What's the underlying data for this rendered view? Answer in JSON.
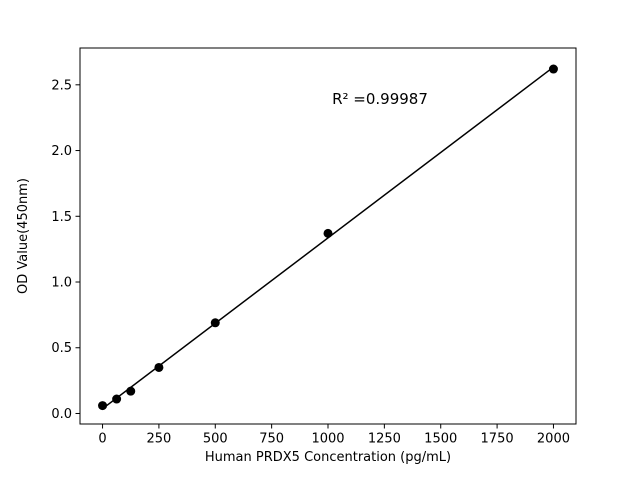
{
  "figure": {
    "background": "#ffffff"
  },
  "chart_data": {
    "type": "scatter",
    "title": "",
    "xlabel": "Human PRDX5 Concentration (pg/mL)",
    "ylabel": "OD Value(450nm)",
    "annotation": "R² =0.99987",
    "x": [
      0,
      62.5,
      125,
      250,
      500,
      1000,
      2000
    ],
    "y": [
      0.06,
      0.11,
      0.17,
      0.35,
      0.69,
      1.37,
      2.62
    ],
    "xticks": [
      0,
      250,
      500,
      750,
      1000,
      1250,
      1500,
      1750,
      2000
    ],
    "yticks": [
      0.0,
      0.5,
      1.0,
      1.5,
      2.0,
      2.5
    ],
    "xlim": [
      -100,
      2100
    ],
    "ylim": [
      -0.08,
      2.78
    ],
    "fit_line": true,
    "grid": false,
    "legend": false,
    "marker_color": "#000000",
    "line_color": "#000000",
    "axis_color": "#000000"
  }
}
